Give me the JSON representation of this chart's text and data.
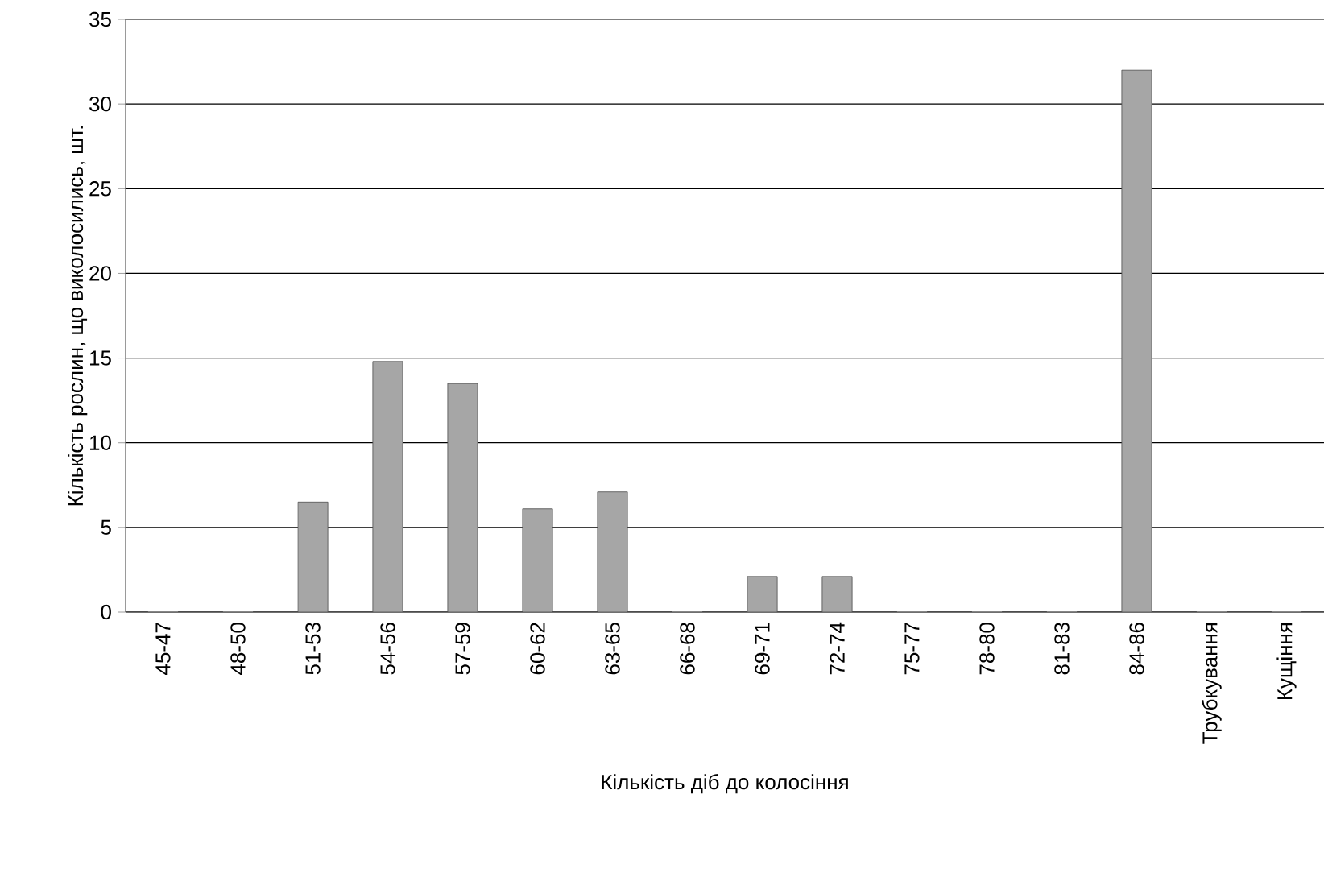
{
  "chart_data": {
    "type": "bar",
    "xlabel": "Кількість діб до колосіння",
    "ylabel": "Кількість рослин, що виколосились, шт.",
    "categories": [
      "45-47",
      "48-50",
      "51-53",
      "54-56",
      "57-59",
      "60-62",
      "63-65",
      "66-68",
      "69-71",
      "72-74",
      "75-77",
      "78-80",
      "81-83",
      "84-86",
      "Трубкування",
      "Кущіння"
    ],
    "values": [
      0,
      0,
      6.5,
      14.8,
      13.5,
      6.1,
      7.1,
      0,
      2.1,
      2.1,
      0,
      0,
      0,
      32.0,
      0,
      0
    ],
    "color": "#a6a6a6",
    "ylim": [
      0,
      35
    ],
    "yticks": [
      0,
      5,
      10,
      15,
      20,
      25,
      30,
      35
    ],
    "grid": "y"
  }
}
